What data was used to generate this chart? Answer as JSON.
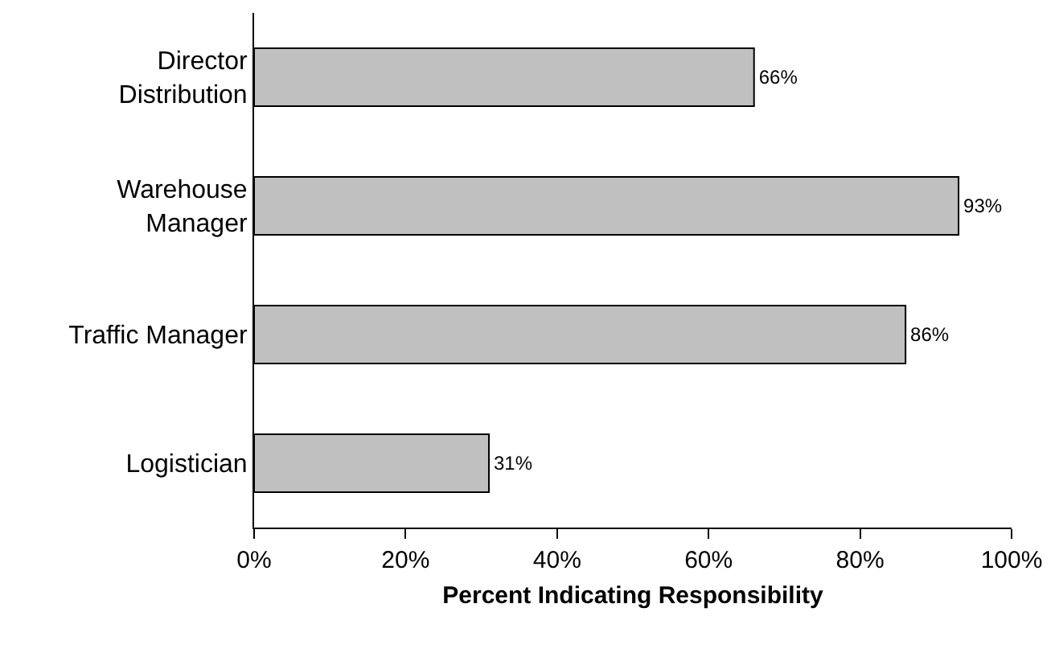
{
  "chart_data": {
    "type": "bar",
    "orientation": "horizontal",
    "categories": [
      "Director\nDistribution",
      "Warehouse\nManager",
      "Traffic Manager",
      "Logistician"
    ],
    "values": [
      66,
      93,
      86,
      31
    ],
    "value_labels": [
      "66%",
      "93%",
      "86%",
      "31%"
    ],
    "color": "#c0c0c0",
    "xlabel": "Percent Indicating Responsibility",
    "xlim": [
      0,
      100
    ],
    "xticks": [
      {
        "value": 0,
        "label": "0%"
      },
      {
        "value": 20,
        "label": "20%"
      },
      {
        "value": 40,
        "label": "40%"
      },
      {
        "value": 60,
        "label": "60%"
      },
      {
        "value": 80,
        "label": "80%"
      },
      {
        "value": 100,
        "label": "100%"
      }
    ]
  }
}
